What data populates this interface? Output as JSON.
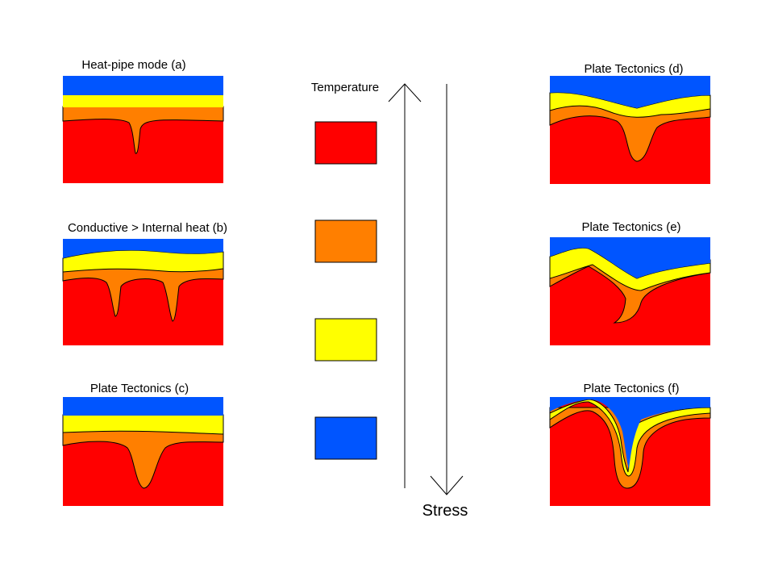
{
  "colors": {
    "red": "#ff0000",
    "orange": "#ff7f00",
    "yellow": "#ffff00",
    "blue": "#0055ff"
  },
  "panels": {
    "a": {
      "title": "Heat-pipe mode (a)"
    },
    "b": {
      "title": "Conductive > Internal heat (b)"
    },
    "c": {
      "title": "Plate Tectonics (c)"
    },
    "d": {
      "title": "Plate Tectonics (d)"
    },
    "e": {
      "title": "Plate Tectonics (e)"
    },
    "f": {
      "title": "Plate Tectonics (f)"
    }
  },
  "axes": {
    "temperature_label": "Temperature",
    "stress_label": "Stress"
  },
  "legend": {
    "swatches": [
      "red",
      "orange",
      "yellow",
      "blue"
    ]
  }
}
